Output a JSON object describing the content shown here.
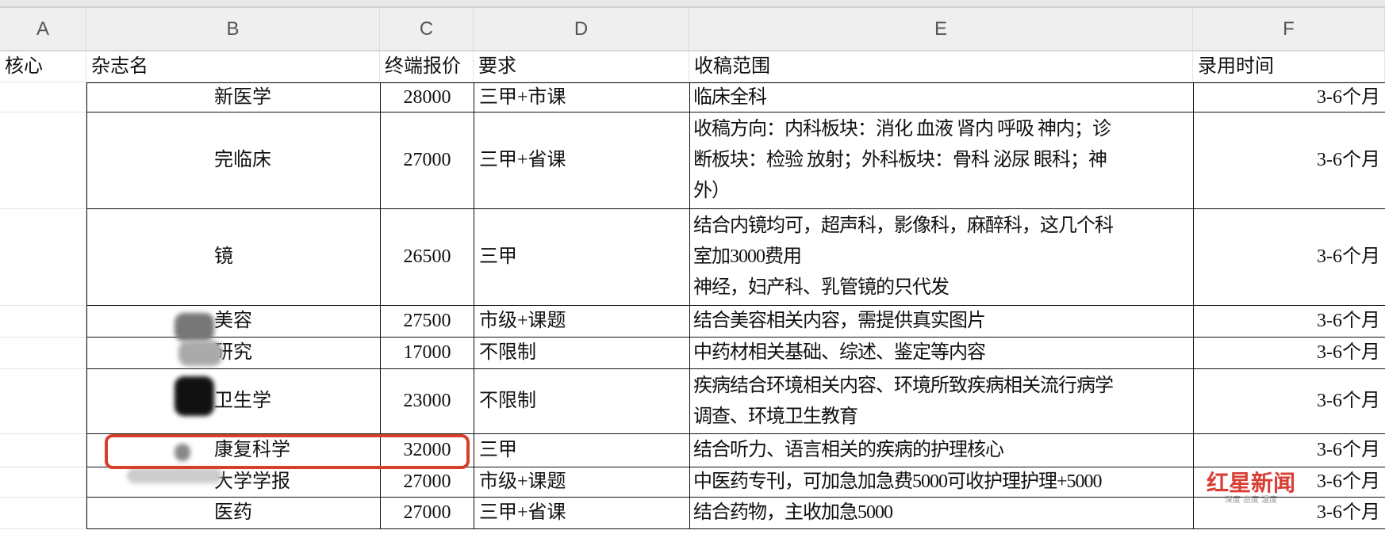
{
  "columns": [
    "A",
    "B",
    "C",
    "D",
    "E",
    "F"
  ],
  "headers": [
    "核心",
    "杂志名",
    "终端报价",
    "要求",
    "收稿范围",
    "录用时间"
  ],
  "rows": [
    {
      "core": "",
      "name": "新医学",
      "price": "28000",
      "req": "三甲+市课",
      "scope": "临床全科",
      "time": "3-6个月"
    },
    {
      "core": "",
      "name": "完临床",
      "price": "27000",
      "req": "三甲+省课",
      "scope": "收稿方向：内科板块：消化 血液 肾内 呼吸 神内；诊\n断板块：检验 放射；外科板块：骨科 泌尿 眼科；神\n外）",
      "time": "3-6个月"
    },
    {
      "core": "",
      "name": "镜",
      "price": "26500",
      "req": "三甲",
      "scope": "结合内镜均可，超声科，影像科，麻醉科，这几个科\n室加3000费用\n神经，妇产科、乳管镜的只代发",
      "time": "3-6个月"
    },
    {
      "core": "",
      "name": "美容",
      "price": "27500",
      "req": "市级+课题",
      "scope": "结合美容相关内容，需提供真实图片",
      "time": "3-6个月"
    },
    {
      "core": "",
      "name": "研究",
      "price": "17000",
      "req": "不限制",
      "scope": "中药材相关基础、综述、鉴定等内容",
      "time": "3-6个月"
    },
    {
      "core": "",
      "name": "卫生学",
      "price": "23000",
      "req": "不限制",
      "scope": "疾病结合环境相关内容、环境所致疾病相关流行病学\n调查、环境卫生教育",
      "time": "3-6个月"
    },
    {
      "core": "",
      "name": "康复科学",
      "price": "32000",
      "req": "三甲",
      "scope": "结合听力、语言相关的疾病的护理核心",
      "time": "3-6个月"
    },
    {
      "core": "",
      "name": "大学学报",
      "price": "27000",
      "req": "市级+课题",
      "scope": "中医药专刊，可加急加急费5000可收护理护理+5000",
      "time": "3-6个月"
    },
    {
      "core": "",
      "name": "医药",
      "price": "27000",
      "req": "三甲+省课",
      "scope": "结合药物，主收加急5000",
      "time": "3-6个月"
    }
  ],
  "highlight_color": "#d6402b",
  "watermark": {
    "logo": "红星新闻",
    "tagline": "深度 态度 温度"
  }
}
